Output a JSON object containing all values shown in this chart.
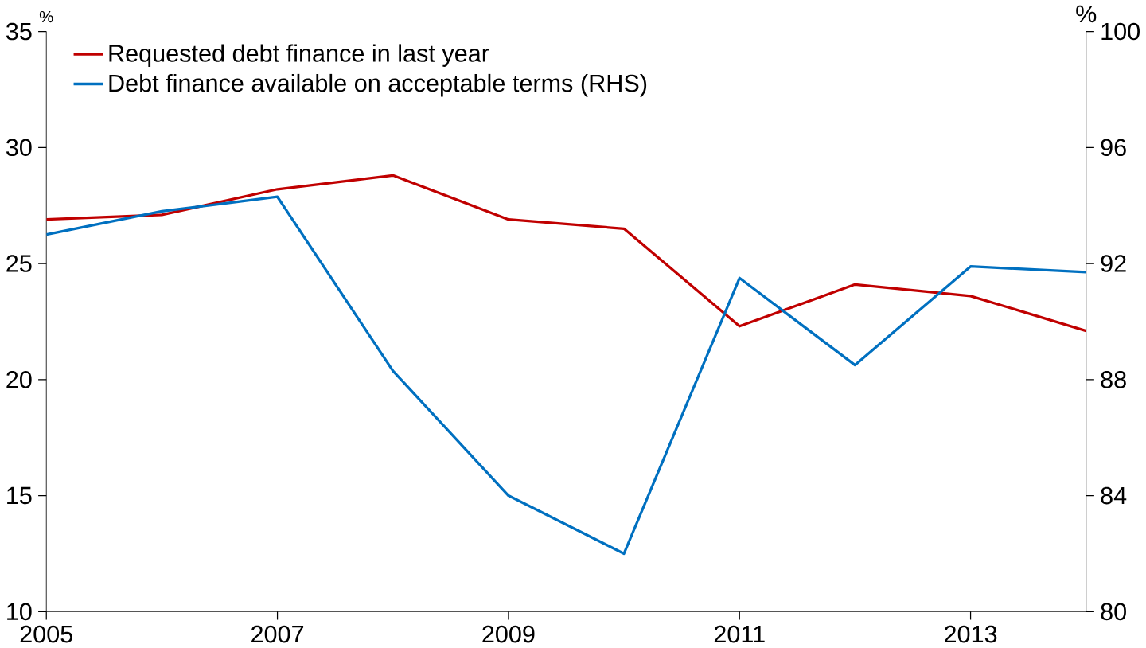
{
  "chart_data": {
    "type": "line",
    "ylabel": "%",
    "y2label": "%",
    "x": [
      2005,
      2006,
      2007,
      2008,
      2009,
      2010,
      2011,
      2012,
      2013,
      2014
    ],
    "xlim": [
      2005,
      2014
    ],
    "xticks": [
      2005,
      2007,
      2009,
      2011,
      2013
    ],
    "ylim": [
      10,
      35
    ],
    "yticks": [
      10,
      15,
      20,
      25,
      30,
      35
    ],
    "y2lim": [
      80,
      100
    ],
    "y2ticks": [
      80,
      84,
      88,
      92,
      96,
      100
    ],
    "legend": "top left",
    "grid": false,
    "marker": "none",
    "line_style": "solid",
    "series": [
      {
        "name": "Requested debt finance in last year",
        "color": "#c00000",
        "values": [
          26.9,
          27.1,
          28.2,
          28.8,
          26.9,
          26.5,
          22.3,
          24.1,
          23.6,
          22.1
        ]
      },
      {
        "name": "Debt finance available on acceptable terms (RHS)",
        "color": "#0070c0",
        "axis": "y2",
        "values": [
          93.0,
          93.8,
          94.3,
          88.3,
          84.0,
          82.0,
          91.5,
          88.5,
          91.9,
          91.7
        ]
      }
    ]
  }
}
